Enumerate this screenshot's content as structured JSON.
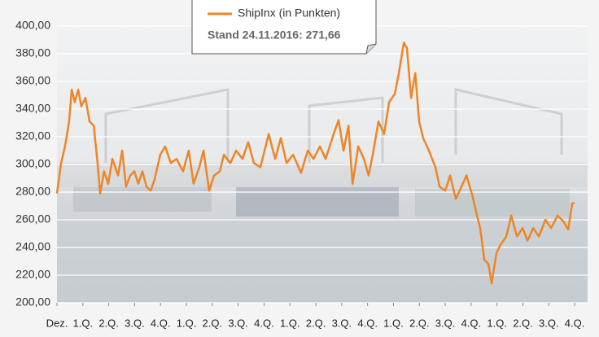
{
  "chart_data": {
    "type": "line",
    "series": [
      {
        "name": "ShipInx (in Punkten)",
        "color": "#ee8526",
        "x": [
          0,
          0.16,
          0.31,
          0.47,
          0.57,
          0.69,
          0.82,
          0.94,
          1.1,
          1.26,
          1.42,
          1.57,
          1.67,
          1.82,
          1.98,
          2.14,
          2.36,
          2.52,
          2.67,
          2.83,
          2.99,
          3.14,
          3.3,
          3.46,
          3.62,
          3.77,
          3.99,
          4.18,
          4.4,
          4.62,
          4.87,
          5.09,
          5.28,
          5.5,
          5.66,
          5.88,
          6.07,
          6.29,
          6.45,
          6.7,
          6.92,
          7.17,
          7.39,
          7.61,
          7.86,
          8.18,
          8.43,
          8.65,
          8.87,
          9.12,
          9.43,
          9.69,
          9.91,
          10.16,
          10.38,
          10.69,
          10.88,
          11.07,
          11.26,
          11.42,
          11.64,
          11.86,
          12.04,
          12.2,
          12.42,
          12.64,
          12.83,
          13.05,
          13.21,
          13.4,
          13.52,
          13.68,
          13.84,
          13.99,
          14.15,
          14.37,
          14.62,
          14.78,
          15,
          15.19,
          15.41,
          15.63,
          15.82,
          16.04,
          16.19,
          16.35,
          16.51,
          16.67,
          16.79,
          16.98,
          17.14,
          17.36,
          17.55,
          17.77,
          17.99,
          18.18,
          18.4,
          18.62,
          18.87,
          19.09,
          19.34,
          19.56,
          19.75,
          19.91,
          20
        ],
        "values": [
          279,
          301,
          313,
          331,
          354,
          345,
          354,
          342,
          348,
          331,
          328,
          301,
          279,
          295,
          286,
          304,
          292,
          310,
          284,
          292,
          295,
          286,
          295,
          284,
          281,
          289,
          307,
          313,
          301,
          304,
          295,
          310,
          286,
          298,
          310,
          281,
          292,
          295,
          307,
          301,
          310,
          304,
          316,
          301,
          298,
          322,
          304,
          319,
          301,
          307,
          294,
          310,
          304,
          313,
          304,
          322,
          332,
          310,
          328,
          286,
          313,
          304,
          292,
          307,
          331,
          322,
          345,
          351,
          366,
          388,
          384,
          348,
          366,
          331,
          319,
          310,
          298,
          284,
          281,
          292,
          275,
          284,
          292,
          278,
          266,
          254,
          231,
          228,
          214,
          236,
          242,
          248,
          263,
          248,
          254,
          245,
          254,
          248,
          260,
          254,
          263,
          259,
          253,
          272,
          272
        ]
      }
    ],
    "annotation": "Stand 24.11.2016: 271,66",
    "xlim": [
      0,
      20.5
    ],
    "xticks": [
      {
        "value": 0,
        "label": "Dez."
      },
      {
        "value": 1,
        "label": "1.Q."
      },
      {
        "value": 2,
        "label": "2.Q."
      },
      {
        "value": 3,
        "label": "3.Q."
      },
      {
        "value": 4,
        "label": "4.Q."
      },
      {
        "value": 5,
        "label": "1.Q."
      },
      {
        "value": 6,
        "label": "2.Q."
      },
      {
        "value": 7,
        "label": "3.Q."
      },
      {
        "value": 8,
        "label": "4.Q."
      },
      {
        "value": 9,
        "label": "1.Q."
      },
      {
        "value": 10,
        "label": "2.Q."
      },
      {
        "value": 11,
        "label": "3.Q."
      },
      {
        "value": 12,
        "label": "4.Q."
      },
      {
        "value": 13,
        "label": "1.Q."
      },
      {
        "value": 14,
        "label": "2.Q."
      },
      {
        "value": 15,
        "label": "3.Q."
      },
      {
        "value": 16,
        "label": "4.Q."
      },
      {
        "value": 17,
        "label": "1.Q."
      },
      {
        "value": 18,
        "label": "2.Q."
      },
      {
        "value": 19,
        "label": "3.Q."
      },
      {
        "value": 20,
        "label": "4.Q."
      }
    ],
    "ylim": [
      200,
      400
    ],
    "yticks": [
      {
        "value": 200,
        "label": "200,00"
      },
      {
        "value": 220,
        "label": "220,00"
      },
      {
        "value": 240,
        "label": "240,00"
      },
      {
        "value": 260,
        "label": "260,00"
      },
      {
        "value": 280,
        "label": "280,00"
      },
      {
        "value": 300,
        "label": "300,00"
      },
      {
        "value": 320,
        "label": "320,00"
      },
      {
        "value": 340,
        "label": "340,00"
      },
      {
        "value": 360,
        "label": "360,00"
      },
      {
        "value": 380,
        "label": "380,00"
      },
      {
        "value": 400,
        "label": "400,00"
      }
    ],
    "grid": true
  }
}
